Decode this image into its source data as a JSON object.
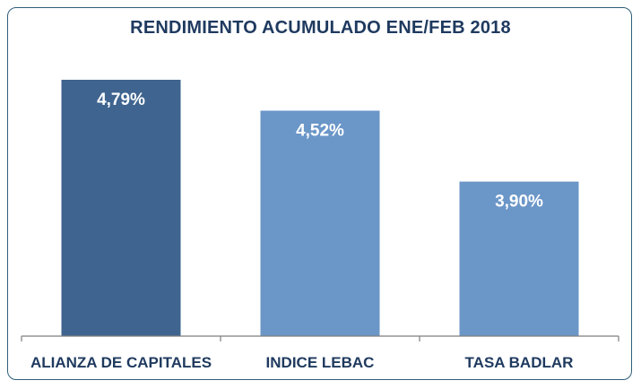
{
  "chart_data": {
    "type": "bar",
    "title": "RENDIMIENTO ACUMULADO ENE/FEB 2018",
    "categories": [
      "ALIANZA DE CAPITALES",
      "INDICE LEBAC",
      "TASA BADLAR"
    ],
    "values": [
      4.79,
      4.52,
      3.9
    ],
    "data_labels": [
      "4,79%",
      "4,52%",
      "3,90%"
    ],
    "colors": [
      "#3f648f",
      "#6b96c8",
      "#6b96c8"
    ],
    "xlabel": "",
    "ylabel": "",
    "grid": false,
    "legend": "none"
  }
}
